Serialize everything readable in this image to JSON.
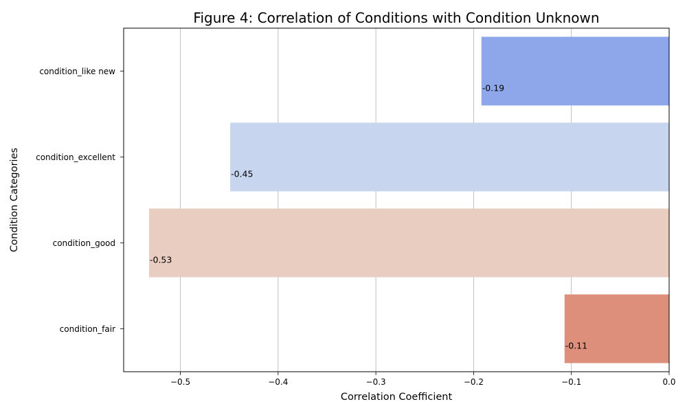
{
  "chart_data": {
    "type": "bar",
    "orientation": "horizontal",
    "title": "Figure 4: Correlation of Conditions with Condition Unknown",
    "xlabel": "Correlation Coefficient",
    "ylabel": "Condition Categories",
    "categories": [
      "condition_like new",
      "condition_excellent",
      "condition_good",
      "condition_fair"
    ],
    "values": [
      -0.192,
      -0.449,
      -0.532,
      -0.107
    ],
    "value_labels": [
      "-0.19",
      "-0.45",
      "-0.53",
      "-0.11"
    ],
    "colors": [
      "#8da7ea",
      "#c7d5ef",
      "#e9cdc1",
      "#de8f7b"
    ],
    "xlim": [
      -0.558,
      0.0
    ],
    "xticks": [
      -0.5,
      -0.4,
      -0.3,
      -0.2,
      -0.1,
      0.0
    ],
    "xtick_labels": [
      "−0.5",
      "−0.4",
      "−0.3",
      "−0.2",
      "−0.1",
      "0.0"
    ],
    "grid": "vertical",
    "legend": "none"
  }
}
